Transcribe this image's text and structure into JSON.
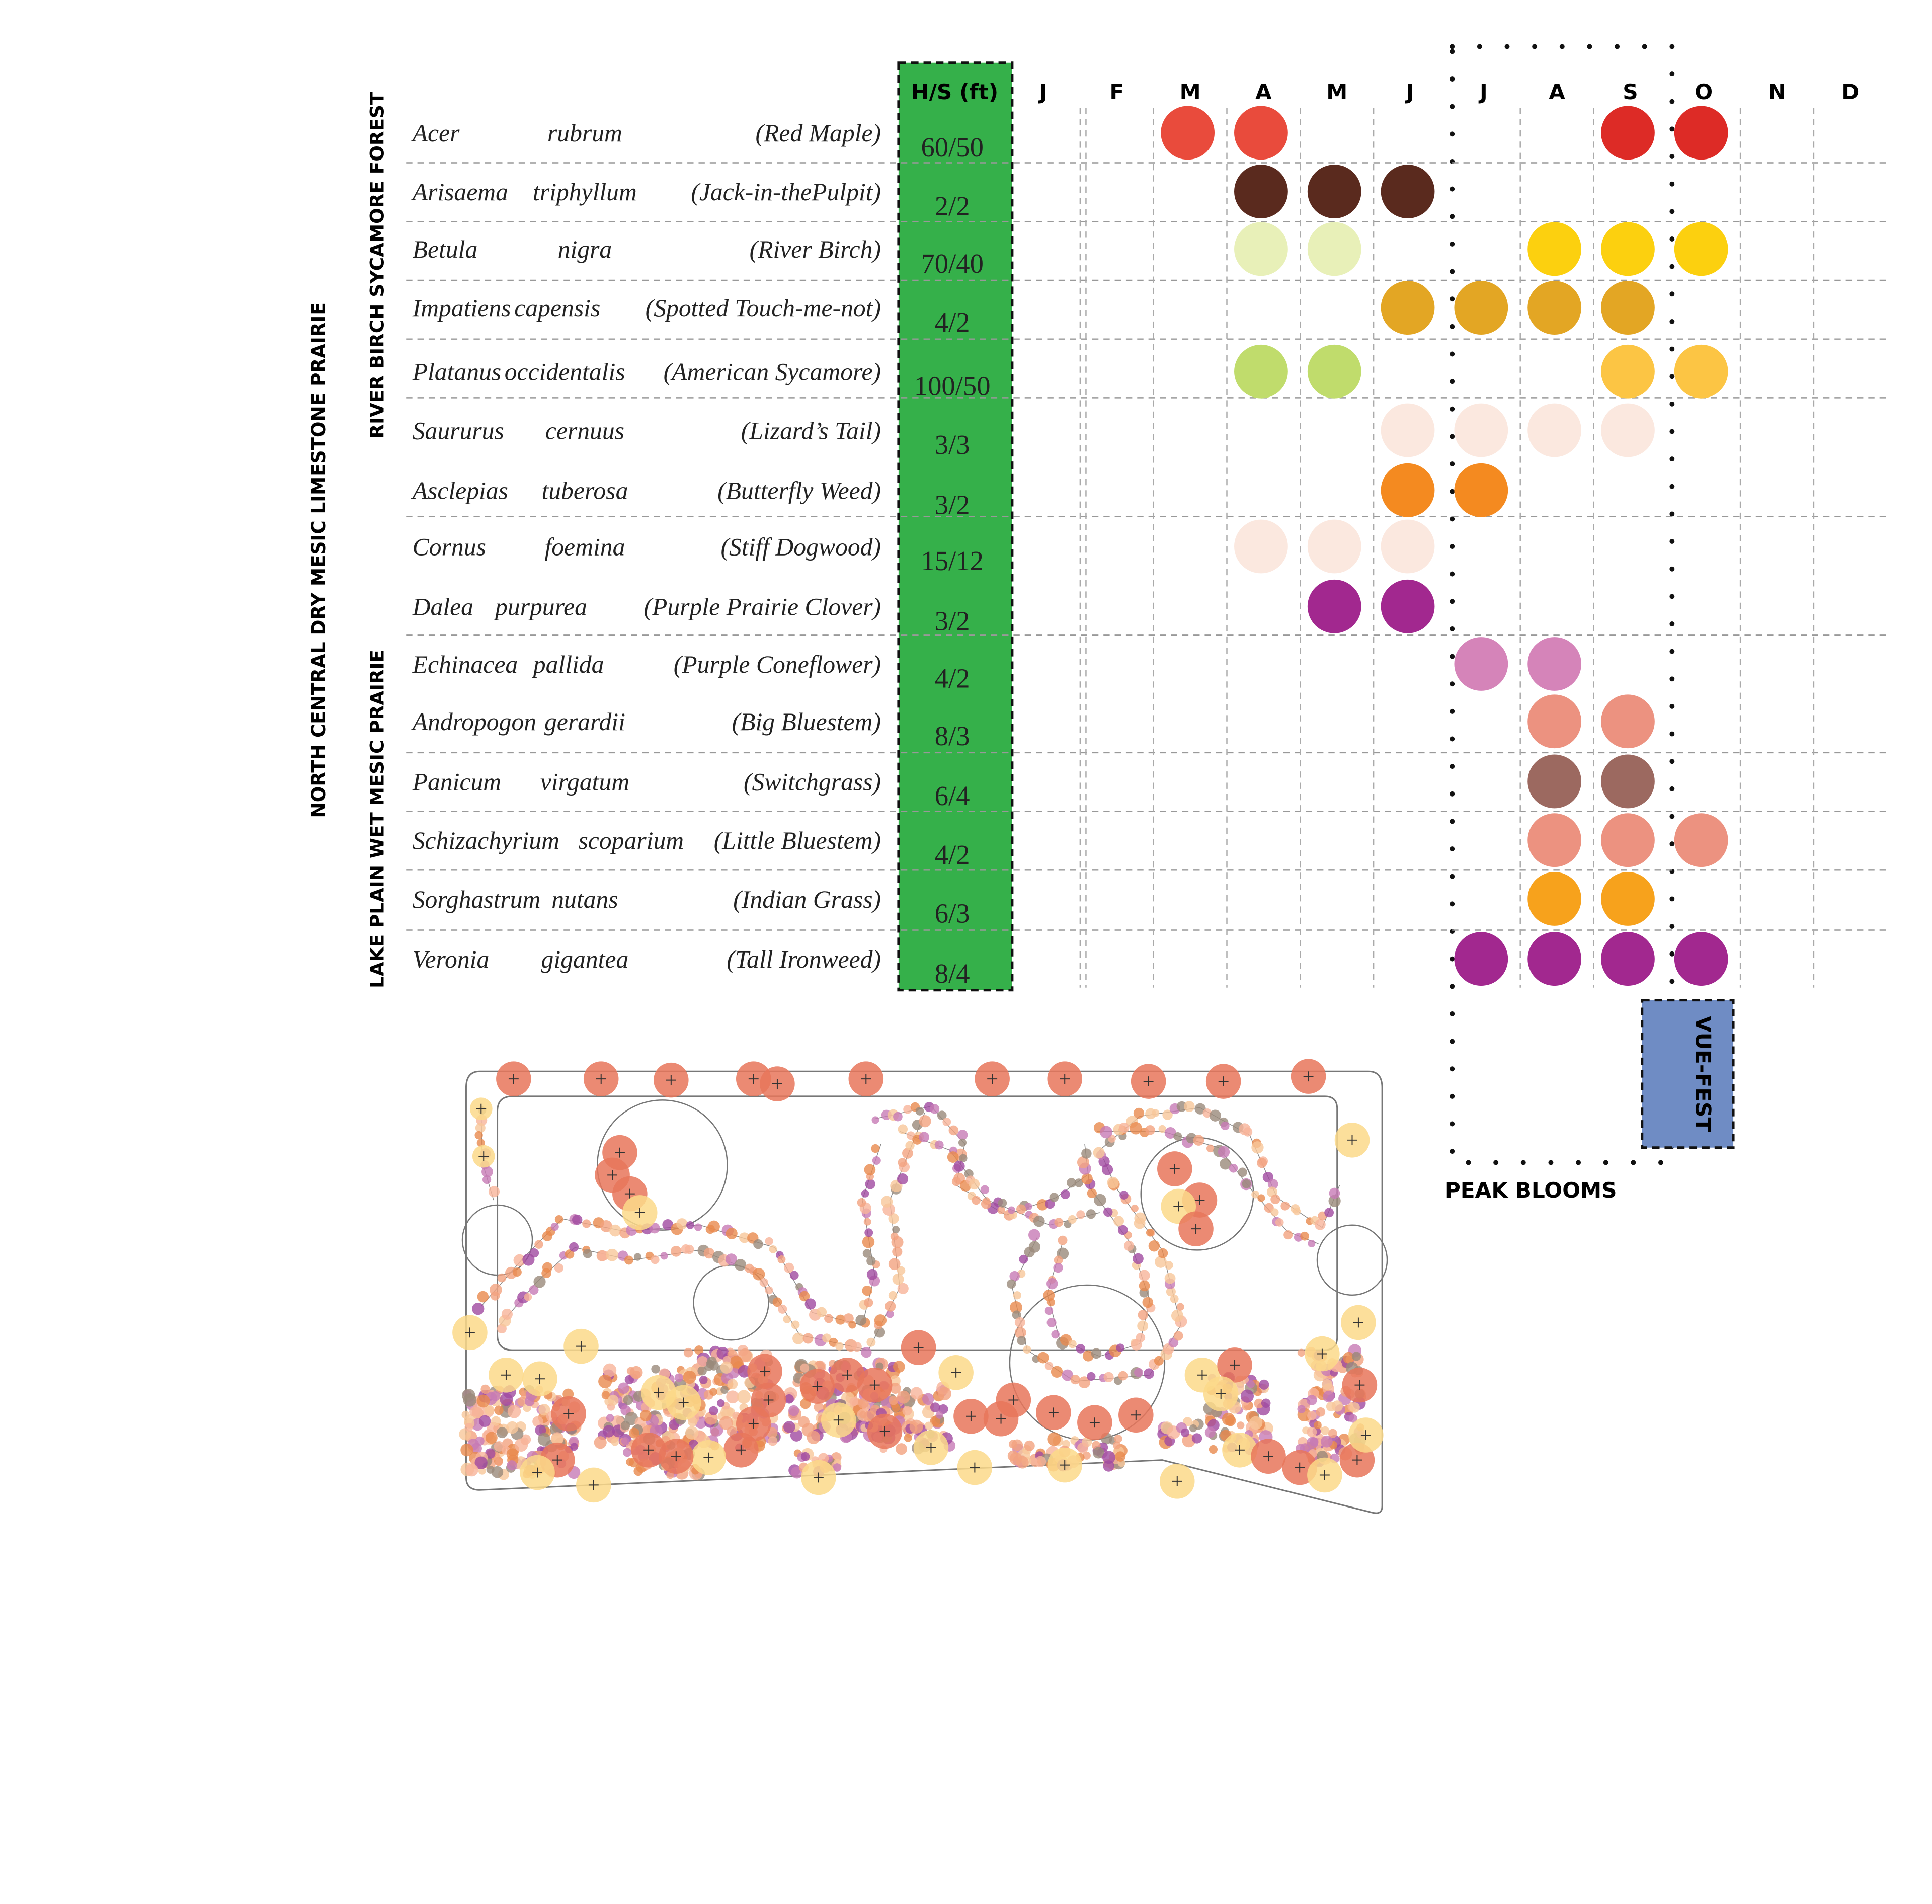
{
  "calendar": {
    "hs_header": "H/S (ft)",
    "months": [
      "J",
      "F",
      "M",
      "A",
      "M",
      "J",
      "J",
      "A",
      "S",
      "O",
      "N",
      "D"
    ],
    "groups": {
      "outer": "NORTH CENTRAL DRY MESIC LIMESTONE PRAIRIE",
      "forest": "RIVER BIRCH SYCAMORE FOREST",
      "prairie": "LAKE PLAIN WET MESIC PRAIRIE"
    },
    "rows": [
      {
        "genus": "Acer",
        "species": "rubrum",
        "common": "(Red Maple)",
        "hs": "60/50",
        "blooms": [
          null,
          null,
          "#e94b3c",
          "#e94b3c",
          null,
          null,
          null,
          null,
          "#dd2b26",
          "#dd2b26",
          null,
          null
        ]
      },
      {
        "genus": "Arisaema",
        "species": "triphyllum",
        "common": "(Jack-in-thePulpit)",
        "hs": "2/2",
        "blooms": [
          null,
          null,
          null,
          "#5a2a1e",
          "#5a2a1e",
          "#5a2a1e",
          null,
          null,
          null,
          null,
          null,
          null
        ]
      },
      {
        "genus": "Betula",
        "species": "nigra",
        "common": "(River Birch)",
        "hs": "70/40",
        "blooms": [
          null,
          null,
          null,
          "#e8f0b8",
          "#e8f0b8",
          null,
          null,
          "#fcd00f",
          "#fcd00f",
          "#fcd00f",
          null,
          null
        ]
      },
      {
        "genus": "Impatiens",
        "species": "capensis",
        "common": "(Spotted Touch-me-not)",
        "hs": "4/2",
        "blooms": [
          null,
          null,
          null,
          null,
          null,
          "#e3a624",
          "#e3a624",
          "#e3a624",
          "#e3a624",
          null,
          null,
          null
        ]
      },
      {
        "genus": "Platanus",
        "species": "occidentalis",
        "common": "(American Sycamore)",
        "hs": "100/50",
        "blooms": [
          null,
          null,
          null,
          "#c0dc6c",
          "#c0dc6c",
          null,
          null,
          null,
          "#fcc544",
          "#fcc544",
          null,
          null
        ]
      },
      {
        "genus": "Saururus",
        "species": "cernuus",
        "common": "(Lizard’s Tail)",
        "hs": "3/3",
        "blooms": [
          null,
          null,
          null,
          null,
          null,
          "#fbe8df",
          "#fbe8df",
          "#fbe8df",
          "#fbe8df",
          null,
          null,
          null
        ]
      },
      {
        "genus": "Asclepias",
        "species": "tuberosa",
        "common": "(Butterfly Weed)",
        "hs": "3/2",
        "blooms": [
          null,
          null,
          null,
          null,
          null,
          "#f48a20",
          "#f48a20",
          null,
          null,
          null,
          null,
          null
        ]
      },
      {
        "genus": "Cornus",
        "species": "foemina",
        "common": "(Stiff Dogwood)",
        "hs": "15/12",
        "blooms": [
          null,
          null,
          null,
          "#fbe8df",
          "#fbe8df",
          "#fbe8df",
          null,
          null,
          null,
          null,
          null,
          null
        ]
      },
      {
        "genus": "Dalea",
        "species": "purpurea",
        "common": "(Purple Prairie Clover)",
        "hs": "3/2",
        "blooms": [
          null,
          null,
          null,
          null,
          "#a2288f",
          "#a2288f",
          null,
          null,
          null,
          null,
          null,
          null
        ]
      },
      {
        "genus": "Echinacea",
        "species": "pallida",
        "common": "(Purple Coneflower)",
        "hs": "4/2",
        "blooms": [
          null,
          null,
          null,
          null,
          null,
          null,
          "#d584b9",
          "#d584b9",
          null,
          null,
          null,
          null
        ]
      },
      {
        "genus": "Andropogon",
        "species": "gerardii",
        "common": "(Big Bluestem)",
        "hs": "8/3",
        "blooms": [
          null,
          null,
          null,
          null,
          null,
          null,
          null,
          "#ec9280",
          "#ec9280",
          null,
          null,
          null
        ]
      },
      {
        "genus": "Panicum",
        "species": "virgatum",
        "common": "(Switchgrass)",
        "hs": "6/4",
        "blooms": [
          null,
          null,
          null,
          null,
          null,
          null,
          null,
          "#9c6960",
          "#9c6960",
          null,
          null,
          null
        ]
      },
      {
        "genus": "Schizachyrium",
        "species": "scoparium",
        "common": "(Little Bluestem)",
        "hs": "4/2",
        "blooms": [
          null,
          null,
          null,
          null,
          null,
          null,
          null,
          "#ec9280",
          "#ec9280",
          "#ec9280",
          null,
          null
        ]
      },
      {
        "genus": "Sorghastrum",
        "species": "nutans",
        "common": "(Indian Grass)",
        "hs": "6/3",
        "blooms": [
          null,
          null,
          null,
          null,
          null,
          null,
          null,
          "#f7a21c",
          "#f7a21c",
          null,
          null,
          null
        ]
      },
      {
        "genus": "Veronia",
        "species": "gigantea",
        "common": "(Tall Ironweed)",
        "hs": "8/4",
        "blooms": [
          null,
          null,
          null,
          null,
          null,
          null,
          "#a2288f",
          "#a2288f",
          "#a2288f",
          "#a2288f",
          null,
          null
        ]
      }
    ],
    "peak_label": "PEAK BLOOMS",
    "event_label": "VUE-FEST"
  }
}
